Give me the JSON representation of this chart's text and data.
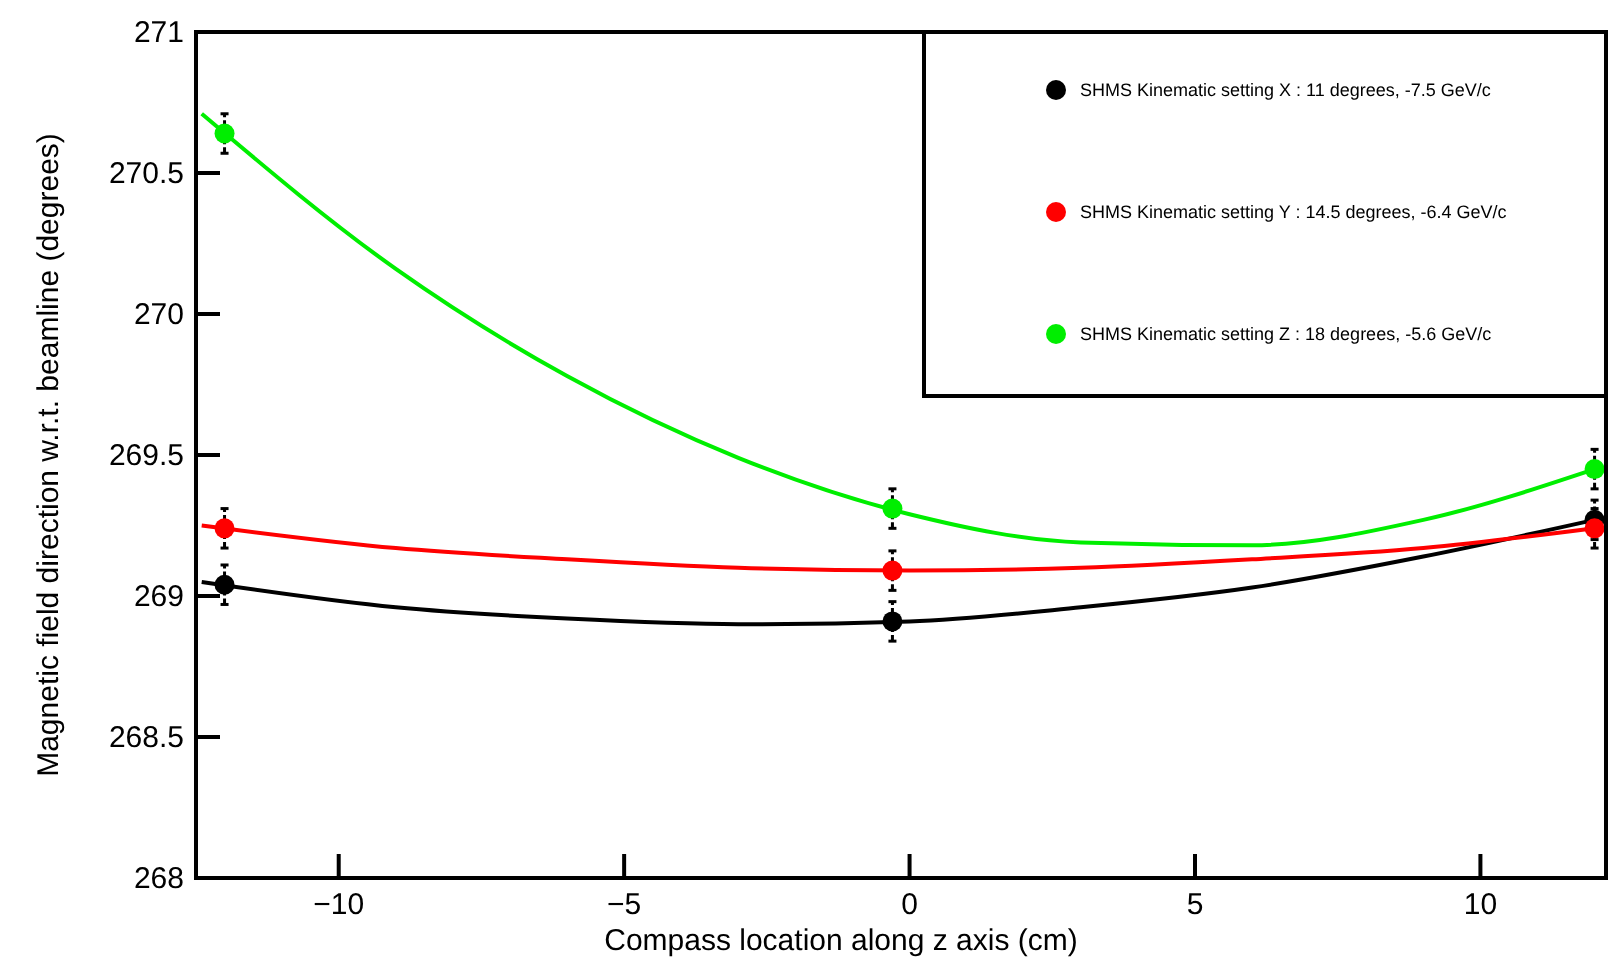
{
  "chart_data": {
    "type": "scatter",
    "xlabel": "Compass location along z axis (cm)",
    "ylabel": "Magnetic field direction w.r.t. beamline (degrees)",
    "xlim": [
      -12.5,
      12.2
    ],
    "xticks": [
      {
        "value": -10,
        "label": "−10"
      },
      {
        "value": -5,
        "label": "−5"
      },
      0,
      5,
      10
    ],
    "ylim": [
      268,
      271
    ],
    "yticks": [
      268,
      268.5,
      269,
      269.5,
      270,
      270.5,
      271
    ],
    "grid": false,
    "legend": "top right",
    "series": [
      {
        "name": "SHMS Kinematic setting X : 11 degrees, -7.5 GeV/c",
        "color": "#000000",
        "x": [
          -12,
          -0.3,
          12
        ],
        "values": [
          269.04,
          268.91,
          269.27
        ],
        "marker": "circle",
        "errors": [
          0.07,
          0.07,
          0.07
        ]
      },
      {
        "name": "SHMS Kinematic setting Y : 14.5 degrees, -6.4 GeV/c",
        "color": "#ff0000",
        "x": [
          -12,
          -0.3,
          12
        ],
        "values": [
          269.24,
          269.09,
          269.24
        ],
        "marker": "circle",
        "errors": [
          0.07,
          0.07,
          0.07
        ]
      },
      {
        "name": "SHMS Kinematic setting Z : 18 degrees, -5.6 GeV/c",
        "color": "#00ee00",
        "x": [
          -12,
          -0.3,
          12
        ],
        "values": [
          270.64,
          269.31,
          269.45
        ],
        "marker": "circle",
        "errors": [
          0.07,
          0.07,
          0.07
        ]
      },
      {
        "type": "line",
        "color": "#000000",
        "x": [
          -12.4,
          -9,
          -6,
          -3,
          0,
          3,
          6,
          9,
          12
        ],
        "values": [
          269.05,
          268.96,
          268.92,
          268.9,
          268.91,
          268.96,
          269.03,
          269.14,
          269.27
        ]
      },
      {
        "type": "line",
        "color": "#ff0000",
        "x": [
          -12.4,
          -9,
          -6,
          -3,
          0,
          3,
          6,
          9,
          12
        ],
        "values": [
          269.25,
          269.17,
          269.13,
          269.1,
          269.09,
          269.1,
          269.13,
          269.17,
          269.24
        ]
      },
      {
        "type": "line",
        "color": "#00ee00",
        "x": [
          -12.4,
          -9,
          -6,
          -3,
          0,
          3,
          6,
          9,
          12
        ],
        "values": [
          270.71,
          270.16,
          269.78,
          269.49,
          269.29,
          269.19,
          269.18,
          269.27,
          269.45
        ]
      }
    ]
  }
}
